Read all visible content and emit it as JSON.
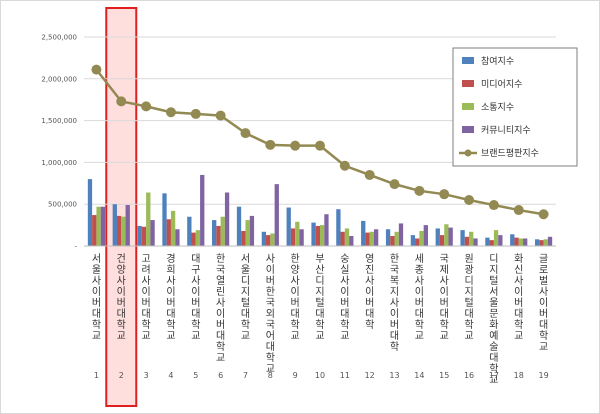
{
  "chart_data": {
    "type": "bar",
    "title": "",
    "xlabel": "",
    "ylabel": "",
    "ylim": [
      0,
      2500000
    ],
    "yticks": [
      "2,500,000",
      "2,000,000",
      "1,500,000",
      "1,000,000",
      "500,000",
      "-"
    ],
    "ytick_values": [
      2500000,
      2000000,
      1500000,
      1000000,
      500000,
      0
    ],
    "categories": [
      "서울사이버대학교",
      "건양사이버대학교",
      "고려사이버대학교",
      "경희사이버대학교",
      "대구사이버대학교",
      "한국열린사이버대학교",
      "서울디지털대학교",
      "사이버한국외국어대학교",
      "한양사이버대학교",
      "부산디지털대학교",
      "숭실사이버대학교",
      "영진사이버대학",
      "한국복지사이버대학",
      "세종사이버대학교",
      "국제사이버대학교",
      "원광디지털대학교",
      "디지털서울문화예술대학교",
      "화신사이버대학교",
      "글로벌사이버대학교"
    ],
    "ranks": [
      "1",
      "2",
      "3",
      "4",
      "5",
      "6",
      "7",
      "8",
      "9",
      "10",
      "11",
      "12",
      "13",
      "14",
      "15",
      "16",
      "17",
      "18",
      "19"
    ],
    "highlight_index": 1,
    "grid": true,
    "legend_position": "top-right",
    "series": [
      {
        "name": "참여지수",
        "type": "bar",
        "color": "#4f81bd",
        "values": [
          800000,
          500000,
          240000,
          630000,
          350000,
          310000,
          470000,
          170000,
          460000,
          280000,
          440000,
          300000,
          200000,
          130000,
          210000,
          190000,
          100000,
          140000,
          80000
        ]
      },
      {
        "name": "미디어지수",
        "type": "bar",
        "color": "#c0504d",
        "values": [
          370000,
          360000,
          230000,
          320000,
          160000,
          240000,
          180000,
          130000,
          210000,
          240000,
          170000,
          160000,
          120000,
          90000,
          130000,
          110000,
          70000,
          100000,
          70000
        ]
      },
      {
        "name": "소통지수",
        "type": "bar",
        "color": "#9bbb59",
        "values": [
          470000,
          350000,
          640000,
          420000,
          190000,
          350000,
          310000,
          150000,
          290000,
          250000,
          210000,
          170000,
          170000,
          180000,
          260000,
          170000,
          190000,
          90000,
          80000
        ]
      },
      {
        "name": "커뮤니티지수",
        "type": "bar",
        "color": "#8064a2",
        "values": [
          470000,
          490000,
          310000,
          200000,
          850000,
          640000,
          360000,
          740000,
          200000,
          380000,
          120000,
          200000,
          270000,
          250000,
          220000,
          90000,
          130000,
          90000,
          110000
        ]
      },
      {
        "name": "브랜드평판지수",
        "type": "line",
        "color": "#938953",
        "values": [
          2110000,
          1730000,
          1670000,
          1600000,
          1580000,
          1560000,
          1350000,
          1210000,
          1200000,
          1200000,
          960000,
          850000,
          740000,
          660000,
          620000,
          550000,
          490000,
          430000,
          380000
        ]
      }
    ]
  }
}
